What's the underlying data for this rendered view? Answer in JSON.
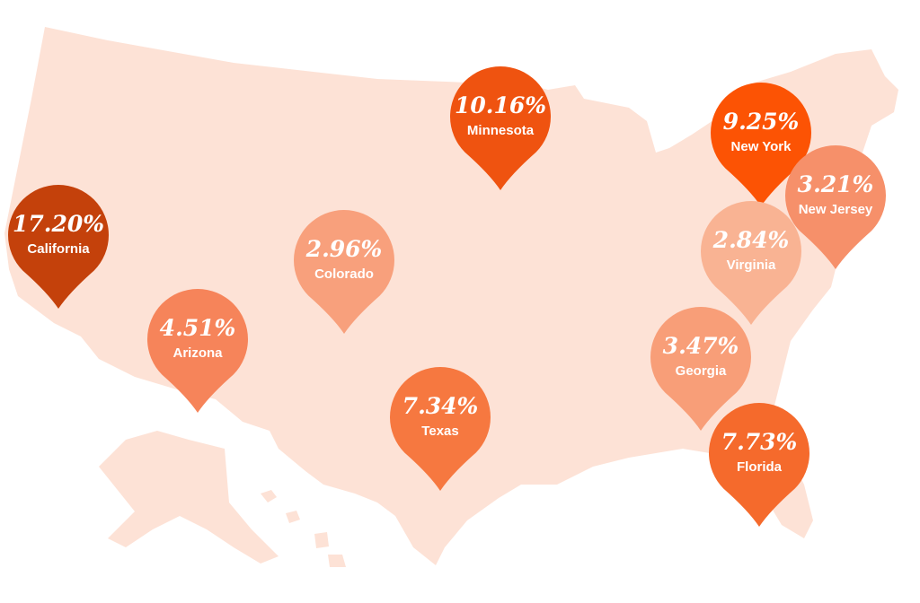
{
  "pins": [
    {
      "percent": "17.20%",
      "state": "California",
      "color": "#c4410b"
    },
    {
      "percent": "10.16%",
      "state": "Minnesota",
      "color": "#ef5310"
    },
    {
      "percent": "9.25%",
      "state": "New York",
      "color": "#fc5304"
    },
    {
      "percent": "3.21%",
      "state": "New Jersey",
      "color": "#f6906a"
    },
    {
      "percent": "2.96%",
      "state": "Colorado",
      "color": "#f8a07c"
    },
    {
      "percent": "2.84%",
      "state": "Virginia",
      "color": "#f9b393"
    },
    {
      "percent": "4.51%",
      "state": "Arizona",
      "color": "#f6845a"
    },
    {
      "percent": "3.47%",
      "state": "Georgia",
      "color": "#f89e78"
    },
    {
      "percent": "7.34%",
      "state": "Texas",
      "color": "#f67840"
    },
    {
      "percent": "7.73%",
      "state": "Florida",
      "color": "#f56a2c"
    }
  ]
}
